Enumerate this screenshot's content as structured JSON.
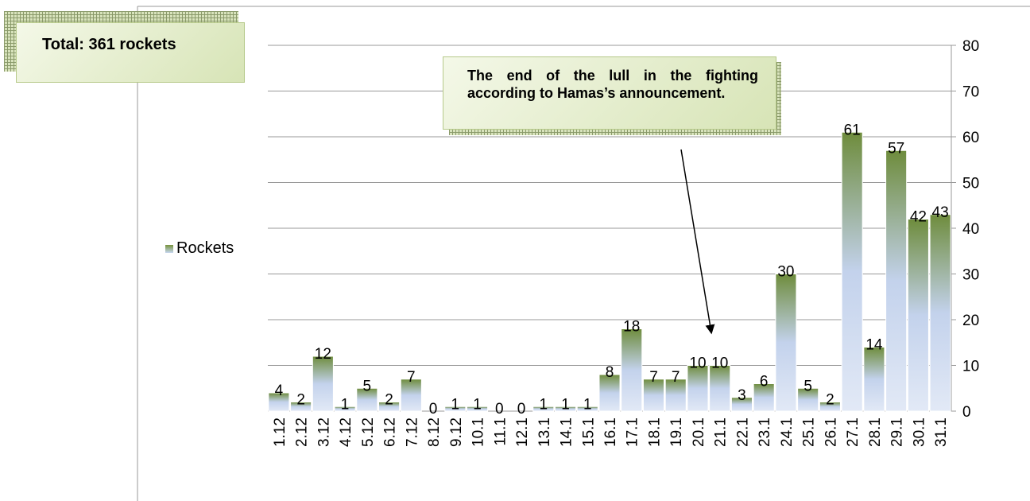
{
  "chart_data": {
    "type": "bar",
    "annotations": [
      "Total: 361 rockets",
      "The end of the lull in the fighting according to Hamas’s announcement."
    ],
    "categories": [
      "1.12",
      "2.12",
      "3.12",
      "4.12",
      "5.12",
      "6.12",
      "7.12",
      "8.12",
      "9.12",
      "10.1",
      "11.1",
      "12.1",
      "13.1",
      "14.1",
      "15.1",
      "16.1",
      "17.1",
      "18.1",
      "19.1",
      "20.1",
      "21.1",
      "22.1",
      "23.1",
      "24.1",
      "25.1",
      "26.1",
      "27.1",
      "28.1",
      "29.1",
      "30.1",
      "31.1"
    ],
    "series": [
      {
        "name": "Rockets",
        "color": "#77933c",
        "values": [
          4,
          2,
          12,
          1,
          5,
          2,
          7,
          0,
          1,
          1,
          0,
          0,
          1,
          1,
          1,
          8,
          18,
          7,
          7,
          10,
          10,
          3,
          6,
          30,
          5,
          2,
          61,
          14,
          57,
          42,
          43
        ]
      }
    ],
    "ylim": [
      0,
      80
    ],
    "yticks": [
      0,
      10,
      20,
      30,
      40,
      50,
      60,
      70,
      80
    ],
    "grid": true,
    "y_axis_side": "right",
    "legend": "left"
  }
}
